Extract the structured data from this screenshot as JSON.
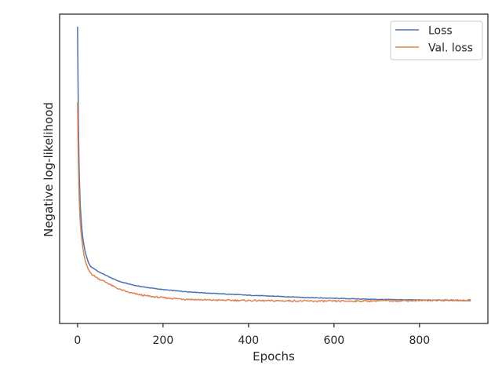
{
  "chart_data": {
    "type": "line",
    "title": "",
    "xlabel": "Epochs",
    "ylabel": "Negative log-likelihood",
    "xlim": [
      -42,
      960
    ],
    "ylim": [
      0,
      100
    ],
    "xticks": [
      0,
      200,
      400,
      600,
      800
    ],
    "yticks": [],
    "grid": false,
    "legend_position": "top-right",
    "series": [
      {
        "name": "Loss",
        "color": "#4c72b0",
        "x": [
          0,
          1,
          2,
          3,
          4,
          5,
          6,
          8,
          10,
          12,
          15,
          18,
          20,
          25,
          30,
          35,
          40,
          50,
          60,
          70,
          80,
          90,
          100,
          120,
          140,
          160,
          180,
          200,
          250,
          300,
          350,
          400,
          450,
          500,
          550,
          600,
          650,
          700,
          750,
          800,
          850,
          900,
          920
        ],
        "values": [
          100,
          82,
          66,
          55,
          47,
          42,
          37,
          32,
          28,
          25,
          22,
          19.5,
          18.5,
          16,
          14.5,
          14,
          13.5,
          12.5,
          11.8,
          11,
          10.3,
          9.6,
          9,
          8.2,
          7.5,
          7,
          6.6,
          6.2,
          5.5,
          5,
          4.6,
          4.2,
          3.9,
          3.6,
          3.3,
          3.1,
          2.9,
          2.7,
          2.6,
          2.5,
          2.4,
          2.3,
          2.3
        ]
      },
      {
        "name": "Val. loss",
        "color": "#dd8452",
        "x": [
          0,
          1,
          2,
          3,
          4,
          5,
          6,
          8,
          10,
          12,
          15,
          18,
          20,
          25,
          30,
          35,
          40,
          50,
          60,
          70,
          80,
          90,
          100,
          120,
          140,
          160,
          180,
          200,
          250,
          300,
          350,
          400,
          450,
          500,
          550,
          600,
          650,
          700,
          750,
          800,
          850,
          900,
          920
        ],
        "values": [
          73,
          60,
          50,
          43,
          38,
          34,
          31,
          27,
          24,
          21.5,
          18.5,
          16.5,
          15.5,
          13.5,
          12.2,
          11.5,
          11,
          10,
          9.3,
          8.6,
          7.6,
          6.9,
          6.2,
          5.2,
          4.5,
          4,
          3.6,
          3.3,
          2.8,
          2.5,
          2.4,
          2.3,
          2.2,
          2.2,
          2.1,
          2.1,
          2.1,
          2.2,
          2.2,
          2.3,
          2.4,
          2.4,
          2.5
        ]
      }
    ]
  }
}
